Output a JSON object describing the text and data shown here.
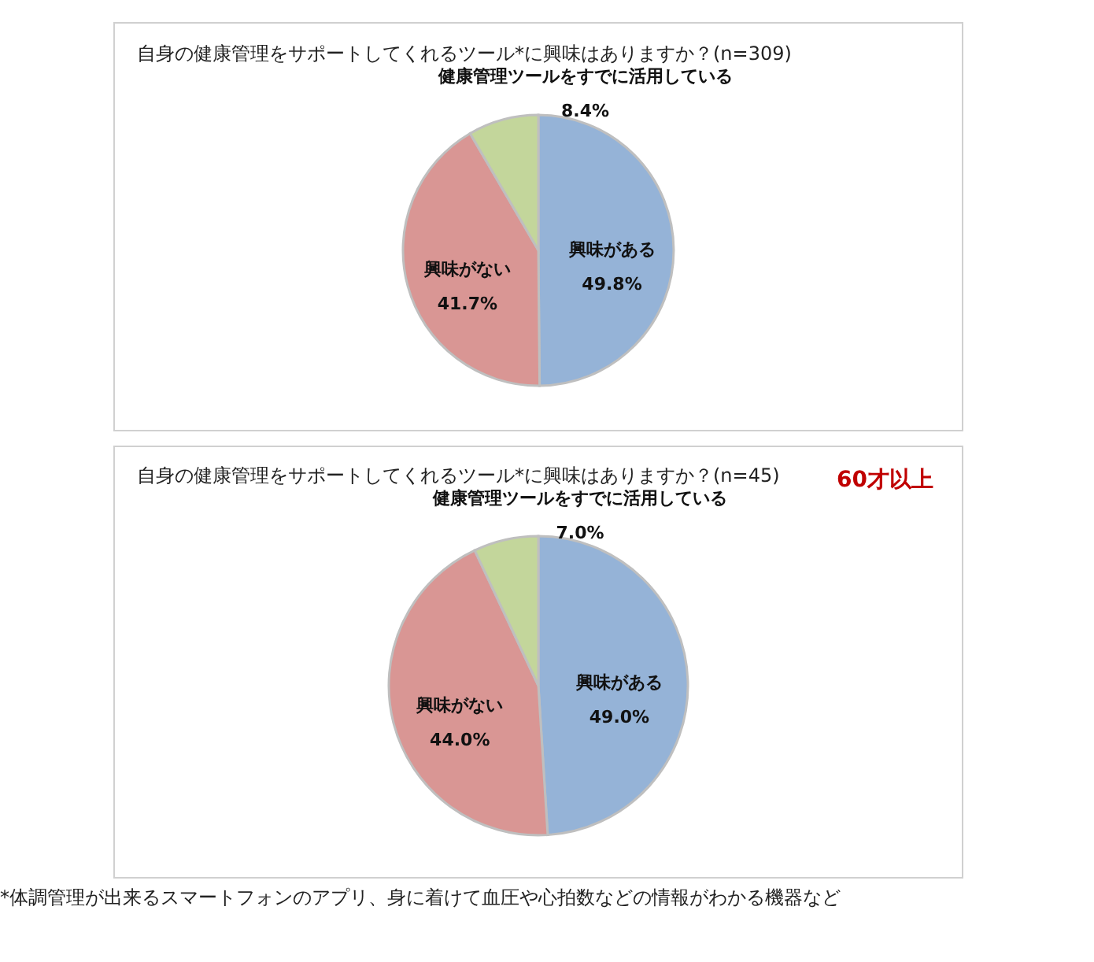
{
  "chart_data": [
    {
      "type": "pie",
      "title": "自身の健康管理をサポートしてくれるツール*に興味はありますか？(n=309)",
      "categories": [
        "興味がある",
        "興味がない",
        "健康管理ツールをすでに活用している"
      ],
      "values": [
        49.8,
        41.7,
        8.4
      ],
      "colors": [
        "#95b3d7",
        "#d99694",
        "#c3d69b"
      ],
      "value_labels": [
        "49.8%",
        "41.7%",
        "8.4%"
      ]
    },
    {
      "type": "pie",
      "title": "自身の健康管理をサポートしてくれるツール*に興味はありますか？(n=45)",
      "subtitle": "60才以上",
      "categories": [
        "興味がある",
        "興味がない",
        "健康管理ツールをすでに活用している"
      ],
      "values": [
        49.0,
        44.0,
        7.0
      ],
      "colors": [
        "#95b3d7",
        "#d99694",
        "#c3d69b"
      ],
      "value_labels": [
        "49.0%",
        "44.0%",
        "7.0%"
      ],
      "annotations": [
        "*体調管理が出来るスマートフォンのアプリ、身に着けて血圧や心拍数などの情報がわかる機器など"
      ]
    }
  ]
}
